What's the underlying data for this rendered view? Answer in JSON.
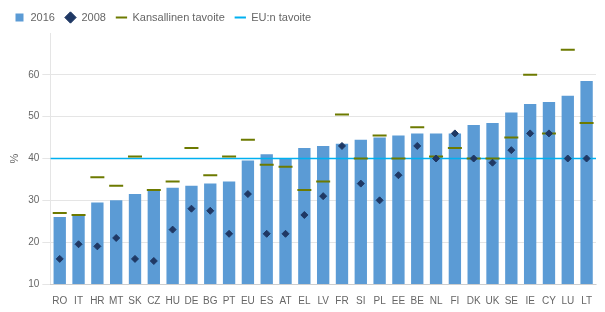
{
  "chart_data": {
    "type": "bar",
    "ylabel": "%",
    "categories": [
      "RO",
      "IT",
      "HR",
      "MT",
      "SK",
      "CZ",
      "HU",
      "DE",
      "BG",
      "PT",
      "EU",
      "ES",
      "AT",
      "EL",
      "LV",
      "FR",
      "SI",
      "PL",
      "EE",
      "BE",
      "NL",
      "FI",
      "DK",
      "UK",
      "SE",
      "IE",
      "CY",
      "LU",
      "LT"
    ],
    "series": [
      {
        "name": "2016",
        "type": "bar",
        "color": "#5B9BD5",
        "values": [
          26,
          26.5,
          29.5,
          30,
          31.5,
          32.5,
          33,
          33.5,
          34,
          34.5,
          39.5,
          41,
          40,
          42.5,
          43,
          43.5,
          44.5,
          45,
          45.5,
          46,
          46,
          46,
          48,
          48.5,
          51,
          53,
          53.5,
          55,
          58.5
        ]
      },
      {
        "name": "2008",
        "type": "scatter",
        "marker": "diamond",
        "color": "#1F3864",
        "values": [
          16,
          19.5,
          19,
          21,
          16,
          15.5,
          23,
          28,
          27.5,
          22,
          31.5,
          22,
          22,
          26.5,
          31,
          43,
          34,
          30,
          36,
          43,
          40,
          46,
          40,
          39,
          42,
          46,
          46,
          40,
          40
        ]
      },
      {
        "name": "Kansallinen tavoite",
        "type": "scatter",
        "marker": "dash",
        "color": "#6D7A00",
        "values": [
          27,
          26.5,
          35.5,
          33.5,
          40.5,
          32.5,
          34.5,
          42.5,
          36,
          40.5,
          44.5,
          38.5,
          38,
          32.5,
          34.5,
          50.5,
          40,
          45.5,
          40,
          47.5,
          40.5,
          42.5,
          40,
          40,
          45,
          60,
          46,
          66,
          48.5
        ]
      },
      {
        "name": "EU:n tavoite",
        "type": "hline",
        "color": "#00B0F0",
        "value": 40
      }
    ],
    "ylim": [
      10,
      70
    ],
    "yticks": [
      10,
      20,
      30,
      40,
      50,
      60
    ],
    "grid": true,
    "legend": "upper left"
  }
}
